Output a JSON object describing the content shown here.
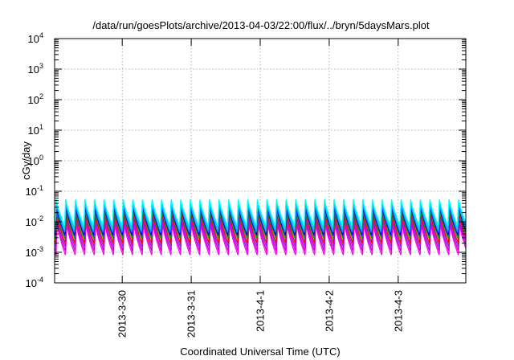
{
  "chart_data": {
    "type": "line",
    "title": "/data/run/goesPlots/archive/2013-04-03/22:00/flux/../bryn/5daysMars.plot",
    "xlabel": "Coordinated Universal Time (UTC)",
    "ylabel": "cGy/day",
    "yscale": "log",
    "ylim": [
      0.0001,
      10000
    ],
    "ytick_exponents": [
      "-4",
      "-3",
      "-2",
      "-1",
      "0",
      "1",
      "2",
      "3",
      "4"
    ],
    "ytick_base": "10",
    "xlim_days": [
      -1.98,
      3.98
    ],
    "xticks": [
      {
        "day": -1,
        "label": "2013-3-30"
      },
      {
        "day": 0,
        "label": "2013-3-31"
      },
      {
        "day": 1,
        "label": "2013-4-1"
      },
      {
        "day": 2,
        "label": "2013-4-2"
      },
      {
        "day": 3,
        "label": "2013-4-3"
      }
    ],
    "grid": true,
    "cycles_per_day": 7.2,
    "series": [
      {
        "color": "#ff00ff",
        "peak": 0.009,
        "trough": 0.0008
      },
      {
        "color": "#cc00cc",
        "peak": 0.012,
        "trough": 0.0011
      },
      {
        "color": "#8a2be2",
        "peak": 0.016,
        "trough": 0.0015
      },
      {
        "color": "#ff0000",
        "peak": 0.021,
        "trough": 0.002
      },
      {
        "color": "#00aa00",
        "peak": 0.026,
        "trough": 0.0028
      },
      {
        "color": "#0000ff",
        "peak": 0.032,
        "trough": 0.0036
      },
      {
        "color": "#1e90ff",
        "peak": 0.04,
        "trough": 0.0046
      },
      {
        "color": "#00ced1",
        "peak": 0.05,
        "trough": 0.006
      },
      {
        "color": "#00ffff",
        "peak": 0.058,
        "trough": 0.0075
      }
    ]
  }
}
